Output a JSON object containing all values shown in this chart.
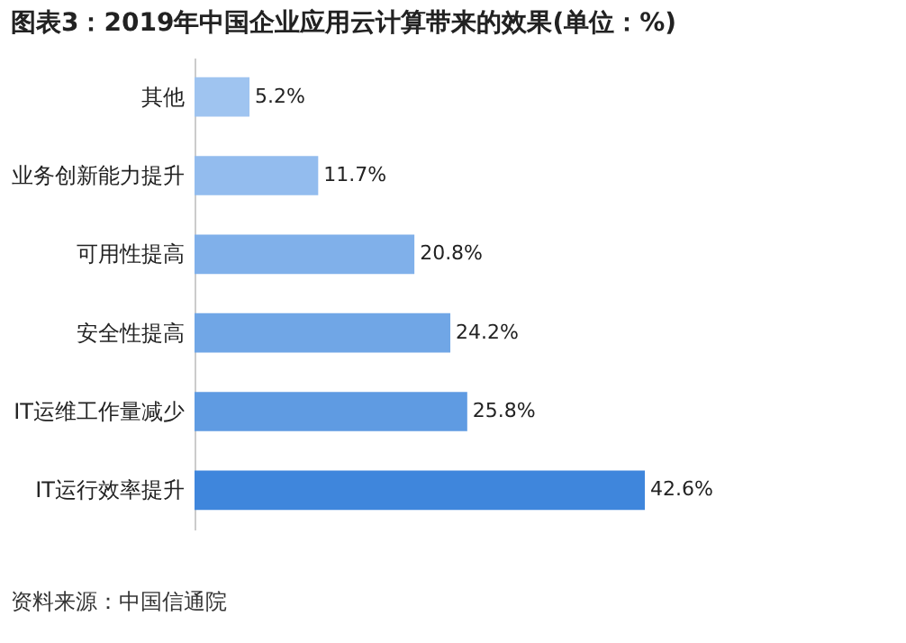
{
  "chart_data": {
    "type": "bar",
    "orientation": "horizontal",
    "title": "图表3：2019年中国企业应用云计算带来的效果(单位：%)",
    "categories": [
      "其他",
      "业务创新能力提升",
      "可用性提高",
      "安全性提高",
      "IT运维工作量减少",
      "IT运行效率提升"
    ],
    "values": [
      5.2,
      11.7,
      20.8,
      24.2,
      25.8,
      42.6
    ],
    "value_labels": [
      "5.2%",
      "11.7%",
      "20.8%",
      "24.2%",
      "25.8%",
      "42.6%"
    ],
    "colors": [
      "#9fc4f0",
      "#93bcee",
      "#80b0ea",
      "#70a6e6",
      "#5f9be2",
      "#3f86dc"
    ],
    "annotations": [
      "资料来源：中国信通院"
    ]
  }
}
